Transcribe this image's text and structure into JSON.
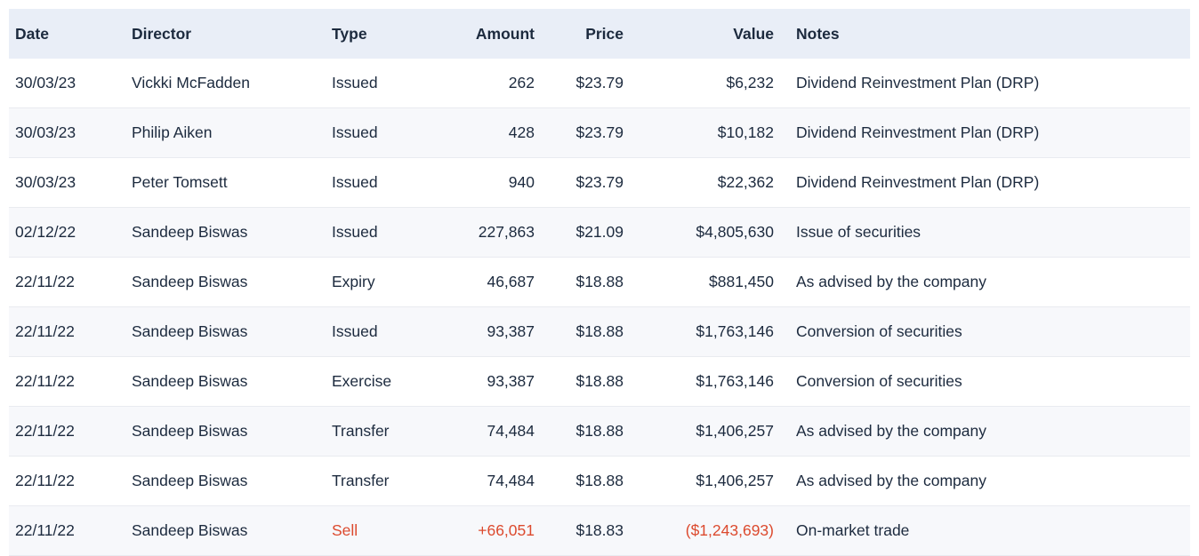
{
  "colors": {
    "header_bg": "#e9eef7",
    "row_alt_bg": "#f7f8fb",
    "row_border": "#e9ebf0",
    "text": "#1c2a3e",
    "negative_text": "#dc4a2e",
    "page_bg": "#ffffff"
  },
  "table": {
    "columns": [
      {
        "key": "date",
        "label": "Date",
        "align": "left"
      },
      {
        "key": "director",
        "label": "Director",
        "align": "left"
      },
      {
        "key": "type",
        "label": "Type",
        "align": "left"
      },
      {
        "key": "amount",
        "label": "Amount",
        "align": "right"
      },
      {
        "key": "price",
        "label": "Price",
        "align": "right"
      },
      {
        "key": "value",
        "label": "Value",
        "align": "right"
      },
      {
        "key": "notes",
        "label": "Notes",
        "align": "left"
      }
    ],
    "rows": [
      {
        "date": "30/03/23",
        "director": "Vickki McFadden",
        "type": "Issued",
        "amount": "262",
        "price": "$23.79",
        "value": "$6,232",
        "notes": "Dividend Reinvestment Plan (DRP)",
        "negative": false
      },
      {
        "date": "30/03/23",
        "director": "Philip Aiken",
        "type": "Issued",
        "amount": "428",
        "price": "$23.79",
        "value": "$10,182",
        "notes": "Dividend Reinvestment Plan (DRP)",
        "negative": false
      },
      {
        "date": "30/03/23",
        "director": "Peter Tomsett",
        "type": "Issued",
        "amount": "940",
        "price": "$23.79",
        "value": "$22,362",
        "notes": "Dividend Reinvestment Plan (DRP)",
        "negative": false
      },
      {
        "date": "02/12/22",
        "director": "Sandeep Biswas",
        "type": "Issued",
        "amount": "227,863",
        "price": "$21.09",
        "value": "$4,805,630",
        "notes": "Issue of securities",
        "negative": false
      },
      {
        "date": "22/11/22",
        "director": "Sandeep Biswas",
        "type": "Expiry",
        "amount": "46,687",
        "price": "$18.88",
        "value": "$881,450",
        "notes": "As advised by the company",
        "negative": false
      },
      {
        "date": "22/11/22",
        "director": "Sandeep Biswas",
        "type": "Issued",
        "amount": "93,387",
        "price": "$18.88",
        "value": "$1,763,146",
        "notes": "Conversion of securities",
        "negative": false
      },
      {
        "date": "22/11/22",
        "director": "Sandeep Biswas",
        "type": "Exercise",
        "amount": "93,387",
        "price": "$18.88",
        "value": "$1,763,146",
        "notes": "Conversion of securities",
        "negative": false
      },
      {
        "date": "22/11/22",
        "director": "Sandeep Biswas",
        "type": "Transfer",
        "amount": "74,484",
        "price": "$18.88",
        "value": "$1,406,257",
        "notes": "As advised by the company",
        "negative": false
      },
      {
        "date": "22/11/22",
        "director": "Sandeep Biswas",
        "type": "Transfer",
        "amount": "74,484",
        "price": "$18.88",
        "value": "$1,406,257",
        "notes": "As advised by the company",
        "negative": false
      },
      {
        "date": "22/11/22",
        "director": "Sandeep Biswas",
        "type": "Sell",
        "amount": "+66,051",
        "price": "$18.83",
        "value": "($1,243,693)",
        "notes": "On-market trade",
        "negative": true
      }
    ],
    "negative_fields": [
      "type",
      "amount",
      "value"
    ]
  }
}
